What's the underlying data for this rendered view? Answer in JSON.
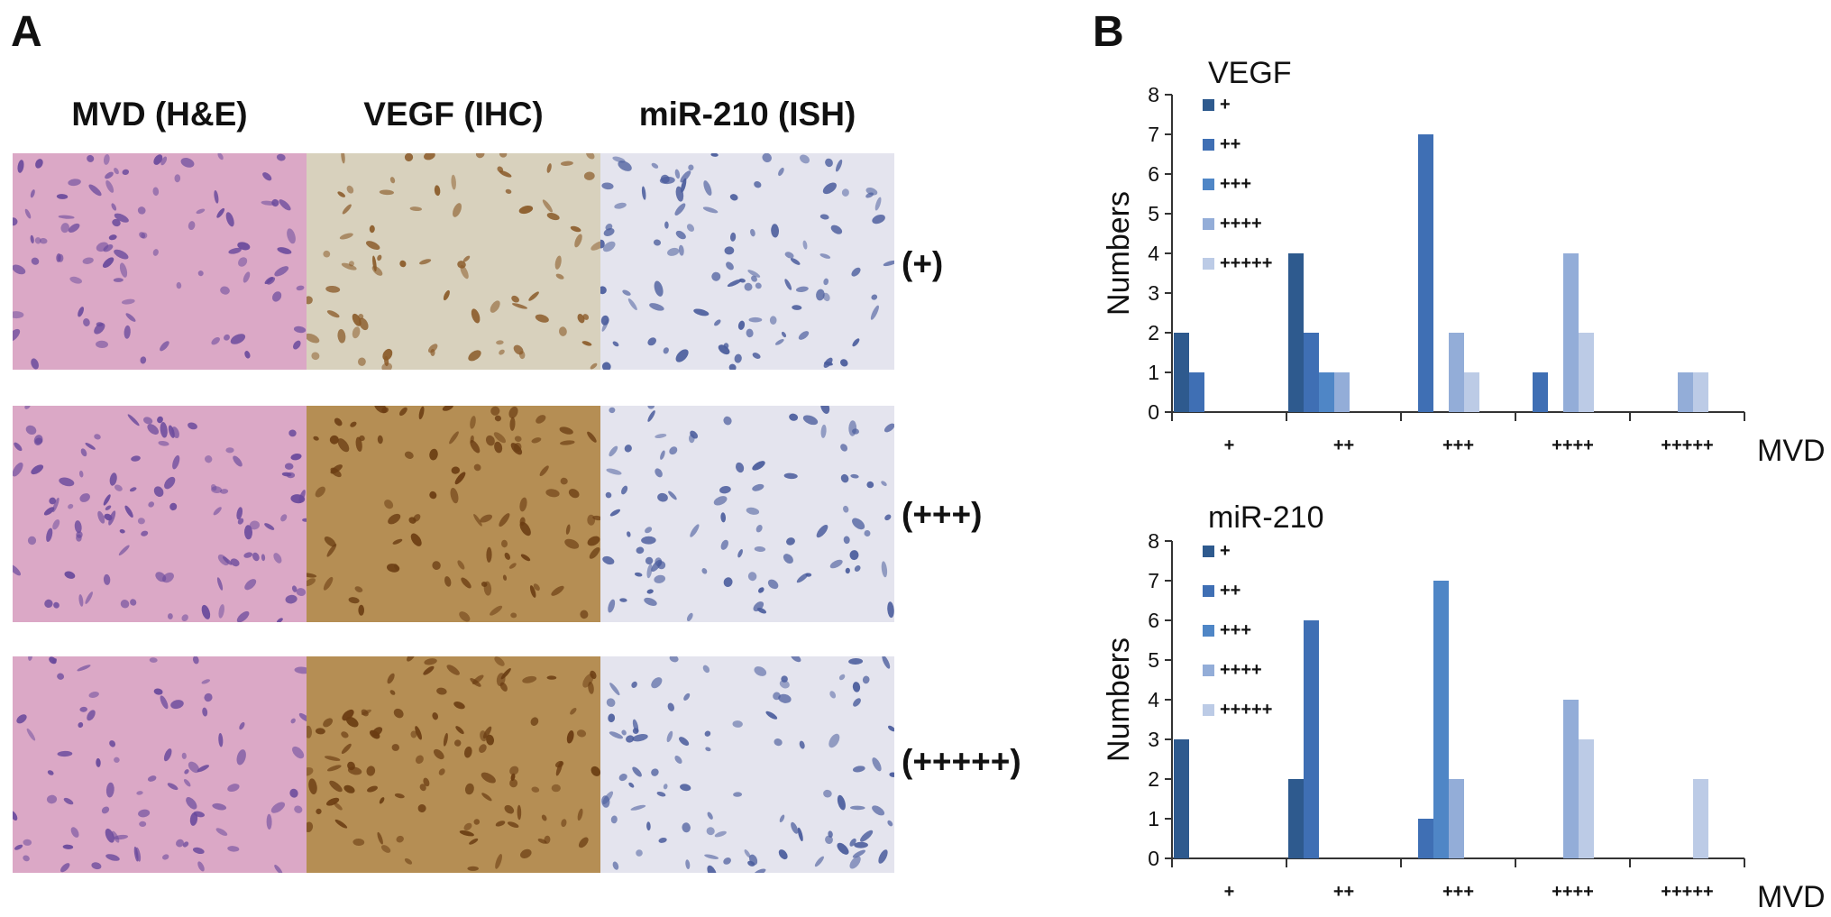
{
  "panelA": {
    "letter": "A",
    "columns": [
      "MVD (H&E)",
      "VEGF (IHC)",
      "miR-210 (ISH)"
    ],
    "grades": [
      "(+)",
      "(+++)",
      "(+++++)"
    ],
    "tile_colors": {
      "he": {
        "bg": "#dba8c6",
        "nucleus": "#6a4a9c"
      },
      "ihc_low": {
        "bg": "#d8d1bd",
        "nucleus": "#8a5a28"
      },
      "ihc_high": {
        "bg": "#b58e54",
        "nucleus": "#6a3c12"
      },
      "ish": {
        "bg": "#e4e4ee",
        "nucleus": "#4a5c9c"
      }
    }
  },
  "panelB": {
    "letter": "B",
    "series_colors": [
      "#2e5a8e",
      "#3f6fb4",
      "#4f86c6",
      "#93add8",
      "#bccbe6"
    ],
    "chart_data": [
      {
        "type": "bar",
        "title": "VEGF",
        "xlabel": "MVD",
        "ylabel": "Numbers",
        "categories": [
          "+",
          "++",
          "+++",
          "++++",
          "+++++"
        ],
        "ylim": [
          0,
          8
        ],
        "yticks": [
          0,
          1,
          2,
          3,
          4,
          5,
          6,
          7,
          8
        ],
        "legend": "top-left",
        "grid": false,
        "series": [
          {
            "name": "+",
            "values": [
              2,
              4,
              0,
              0,
              0
            ]
          },
          {
            "name": "++",
            "values": [
              1,
              2,
              7,
              1,
              0
            ]
          },
          {
            "name": "+++",
            "values": [
              0,
              1,
              0,
              0,
              0
            ]
          },
          {
            "name": "++++",
            "values": [
              0,
              1,
              2,
              4,
              1
            ]
          },
          {
            "name": "+++++",
            "values": [
              0,
              0,
              1,
              2,
              1
            ]
          }
        ]
      },
      {
        "type": "bar",
        "title": "miR-210",
        "xlabel": "MVD",
        "ylabel": "Numbers",
        "categories": [
          "+",
          "++",
          "+++",
          "++++",
          "+++++"
        ],
        "ylim": [
          0,
          8
        ],
        "yticks": [
          0,
          1,
          2,
          3,
          4,
          5,
          6,
          7,
          8
        ],
        "legend": "top-left",
        "grid": false,
        "series": [
          {
            "name": "+",
            "values": [
              3,
              2,
              0,
              0,
              0
            ]
          },
          {
            "name": "++",
            "values": [
              0,
              6,
              1,
              0,
              0
            ]
          },
          {
            "name": "+++",
            "values": [
              0,
              0,
              7,
              0,
              0
            ]
          },
          {
            "name": "++++",
            "values": [
              0,
              0,
              2,
              4,
              0
            ]
          },
          {
            "name": "+++++",
            "values": [
              0,
              0,
              0,
              3,
              2
            ]
          }
        ]
      }
    ]
  }
}
